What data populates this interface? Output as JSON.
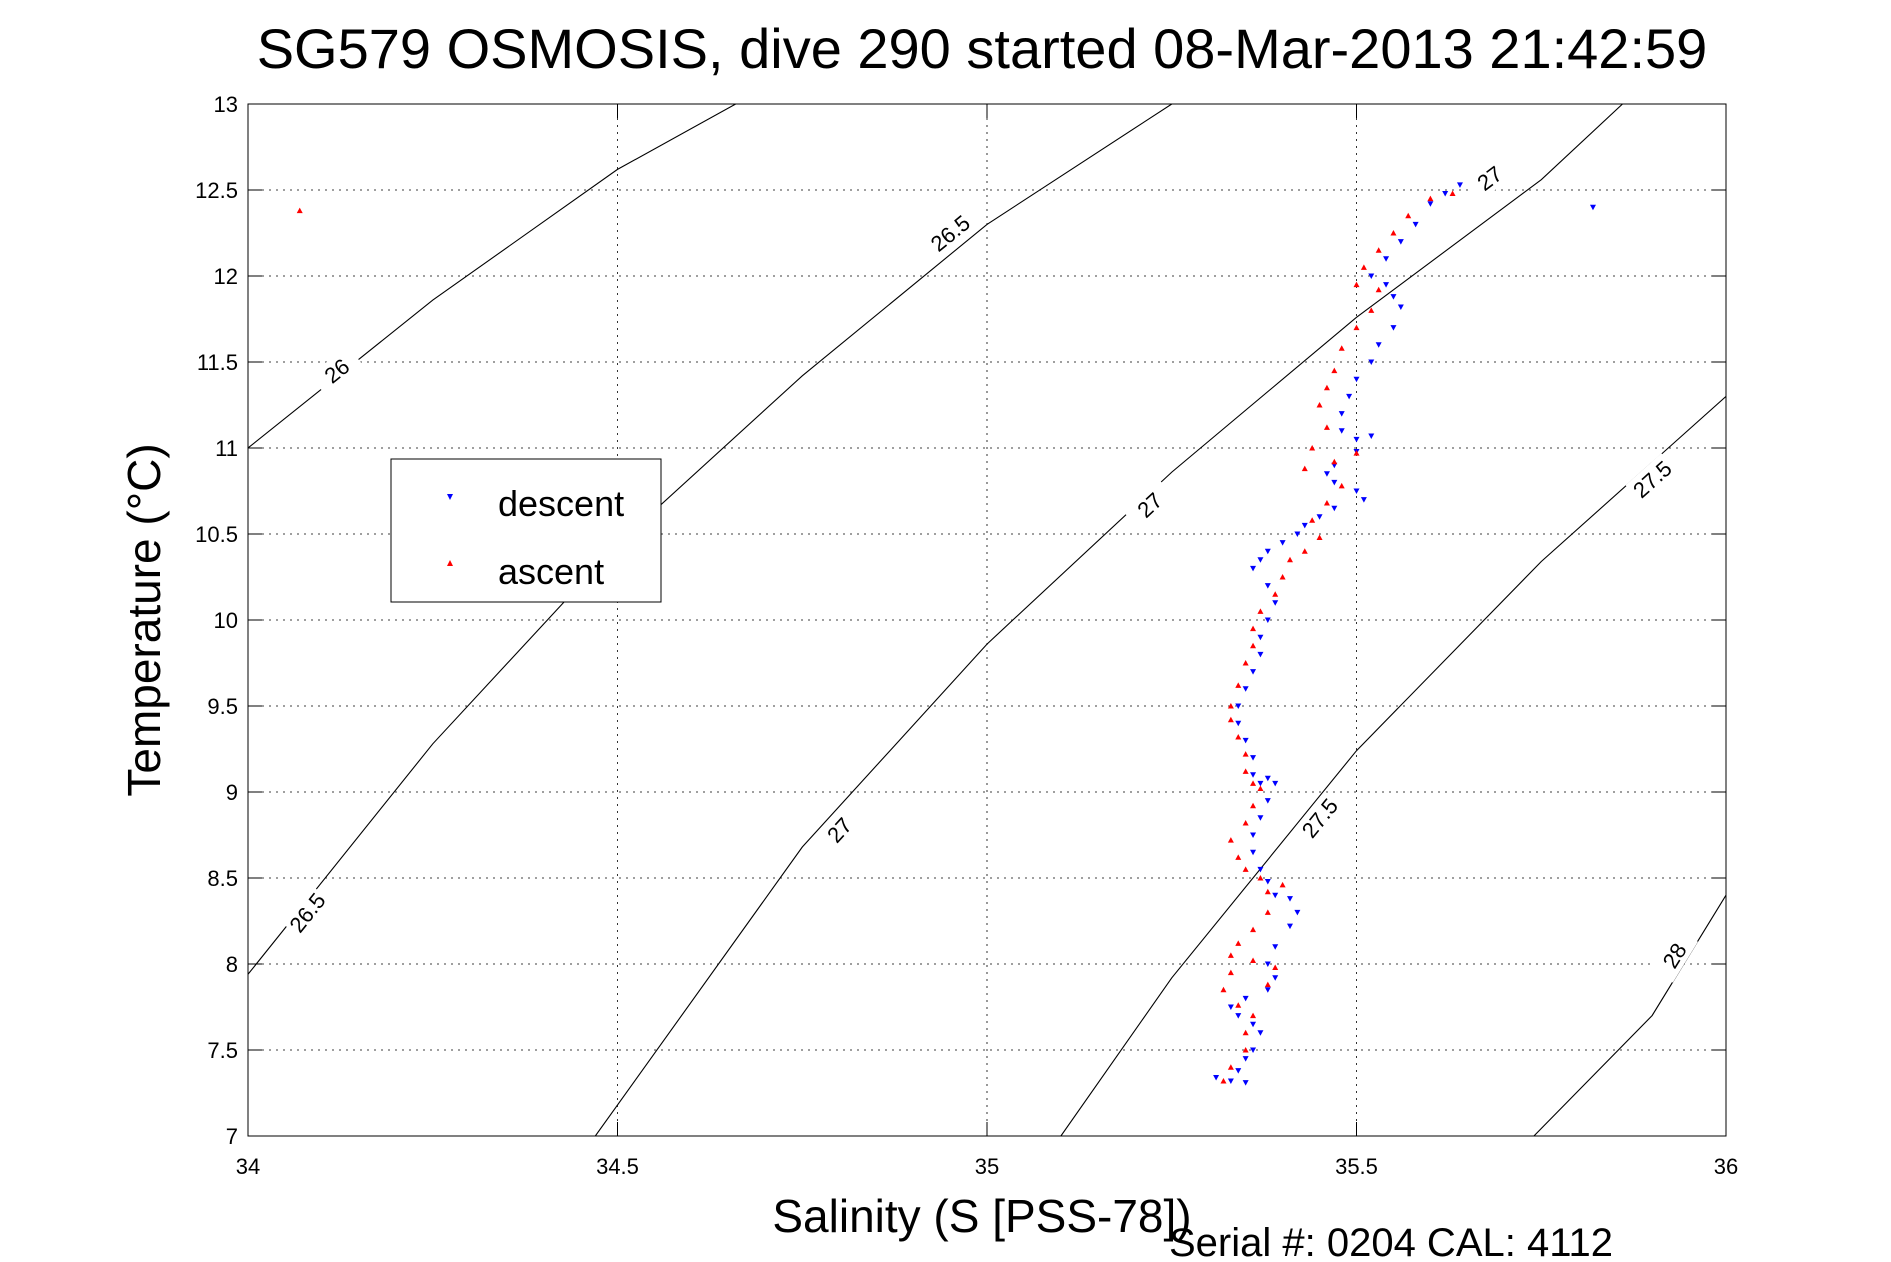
{
  "chart_data": {
    "type": "scatter",
    "title": "SG579 OSMOSIS, dive 290 started 08-Mar-2013 21:42:59",
    "xlabel": "Salinity (S [PSS-78])",
    "ylabel": "Temperature (°C)",
    "xlim": [
      34,
      36
    ],
    "ylim": [
      7,
      13
    ],
    "xticks": [
      "34",
      "34.5",
      "35",
      "35.5",
      "36"
    ],
    "yticks": [
      "7",
      "7.5",
      "8",
      "8.5",
      "9",
      "9.5",
      "10",
      "10.5",
      "11",
      "11.5",
      "12",
      "12.5",
      "13"
    ],
    "grid": true,
    "legend": {
      "placement": "left",
      "entries": [
        "descent",
        "ascent"
      ]
    },
    "footer": "Serial #: 0204  CAL: 4112",
    "colors": {
      "descent": "#0000ff",
      "ascent": "#ff0000",
      "contour": "#000000"
    },
    "density_contours": [
      {
        "label": "26",
        "points": [
          [
            34.0,
            11.0
          ],
          [
            34.25,
            11.86
          ],
          [
            34.5,
            12.62
          ],
          [
            34.66,
            13.0
          ]
        ],
        "label_at": [
          34.12,
          11.45
        ]
      },
      {
        "label": "26.5",
        "points": [
          [
            34.0,
            7.94
          ],
          [
            34.25,
            9.28
          ],
          [
            34.5,
            10.44
          ],
          [
            34.75,
            11.42
          ],
          [
            35.0,
            12.3
          ],
          [
            35.25,
            13.0
          ]
        ],
        "label_at": [
          34.08,
          8.3
        ]
      },
      {
        "label": "26.5",
        "points": [
          [
            34.0,
            7.94
          ],
          [
            34.25,
            9.28
          ],
          [
            34.5,
            10.44
          ],
          [
            34.75,
            11.42
          ],
          [
            35.0,
            12.3
          ],
          [
            35.25,
            13.0
          ]
        ],
        "label_at": [
          34.95,
          12.25
        ]
      },
      {
        "label": "27",
        "points": [
          [
            34.47,
            7.0
          ],
          [
            34.75,
            8.68
          ],
          [
            35.0,
            9.86
          ],
          [
            35.25,
            10.86
          ],
          [
            35.5,
            11.76
          ],
          [
            35.75,
            12.56
          ],
          [
            35.86,
            13.0
          ]
        ],
        "label_at": [
          34.8,
          8.78
        ]
      },
      {
        "label": "27",
        "points": [
          [
            34.47,
            7.0
          ],
          [
            34.75,
            8.68
          ],
          [
            35.0,
            9.86
          ],
          [
            35.25,
            10.86
          ],
          [
            35.5,
            11.76
          ],
          [
            35.75,
            12.56
          ],
          [
            35.86,
            13.0
          ]
        ],
        "label_at": [
          35.22,
          10.67
        ]
      },
      {
        "label": "27",
        "points": [
          [
            34.47,
            7.0
          ],
          [
            34.75,
            8.68
          ],
          [
            35.0,
            9.86
          ],
          [
            35.25,
            10.86
          ],
          [
            35.5,
            11.76
          ],
          [
            35.75,
            12.56
          ],
          [
            35.86,
            13.0
          ]
        ],
        "label_at": [
          35.68,
          12.57
        ]
      },
      {
        "label": "27.5",
        "points": [
          [
            35.1,
            7.0
          ],
          [
            35.25,
            7.92
          ],
          [
            35.5,
            9.24
          ],
          [
            35.75,
            10.34
          ],
          [
            36.0,
            11.3
          ]
        ],
        "label_at": [
          35.45,
          8.85
        ]
      },
      {
        "label": "27.5",
        "points": [
          [
            35.1,
            7.0
          ],
          [
            35.25,
            7.92
          ],
          [
            35.5,
            9.24
          ],
          [
            35.75,
            10.34
          ],
          [
            36.0,
            11.3
          ]
        ],
        "label_at": [
          35.9,
          10.82
        ]
      },
      {
        "label": "28",
        "points": [
          [
            35.74,
            7.0
          ],
          [
            35.9,
            7.7
          ],
          [
            36.0,
            8.4
          ]
        ],
        "label_at": [
          35.93,
          8.05
        ]
      }
    ],
    "series": [
      {
        "name": "descent",
        "marker": "triangle-down",
        "points": [
          [
            35.82,
            12.4
          ],
          [
            35.64,
            12.53
          ],
          [
            35.62,
            12.48
          ],
          [
            35.6,
            12.42
          ],
          [
            35.58,
            12.3
          ],
          [
            35.56,
            12.2
          ],
          [
            35.54,
            12.1
          ],
          [
            35.52,
            12.0
          ],
          [
            35.54,
            11.95
          ],
          [
            35.55,
            11.88
          ],
          [
            35.56,
            11.82
          ],
          [
            35.55,
            11.7
          ],
          [
            35.53,
            11.6
          ],
          [
            35.52,
            11.5
          ],
          [
            35.5,
            11.4
          ],
          [
            35.49,
            11.3
          ],
          [
            35.48,
            11.2
          ],
          [
            35.48,
            11.1
          ],
          [
            35.5,
            11.05
          ],
          [
            35.52,
            11.07
          ],
          [
            35.5,
            10.98
          ],
          [
            35.47,
            10.9
          ],
          [
            35.46,
            10.85
          ],
          [
            35.47,
            10.8
          ],
          [
            35.5,
            10.75
          ],
          [
            35.51,
            10.7
          ],
          [
            35.47,
            10.65
          ],
          [
            35.45,
            10.6
          ],
          [
            35.43,
            10.55
          ],
          [
            35.42,
            10.5
          ],
          [
            35.4,
            10.45
          ],
          [
            35.38,
            10.4
          ],
          [
            35.37,
            10.35
          ],
          [
            35.36,
            10.3
          ],
          [
            35.38,
            10.2
          ],
          [
            35.39,
            10.1
          ],
          [
            35.38,
            10.0
          ],
          [
            35.37,
            9.9
          ],
          [
            35.37,
            9.8
          ],
          [
            35.36,
            9.7
          ],
          [
            35.35,
            9.6
          ],
          [
            35.34,
            9.5
          ],
          [
            35.34,
            9.4
          ],
          [
            35.35,
            9.3
          ],
          [
            35.36,
            9.2
          ],
          [
            35.36,
            9.1
          ],
          [
            35.37,
            9.05
          ],
          [
            35.38,
            9.08
          ],
          [
            35.39,
            9.05
          ],
          [
            35.38,
            8.95
          ],
          [
            35.37,
            8.85
          ],
          [
            35.36,
            8.75
          ],
          [
            35.36,
            8.65
          ],
          [
            35.37,
            8.55
          ],
          [
            35.38,
            8.48
          ],
          [
            35.39,
            8.4
          ],
          [
            35.41,
            8.38
          ],
          [
            35.42,
            8.3
          ],
          [
            35.41,
            8.22
          ],
          [
            35.39,
            8.1
          ],
          [
            35.38,
            8.0
          ],
          [
            35.39,
            7.92
          ],
          [
            35.38,
            7.85
          ],
          [
            35.35,
            7.8
          ],
          [
            35.33,
            7.75
          ],
          [
            35.34,
            7.7
          ],
          [
            35.36,
            7.65
          ],
          [
            35.37,
            7.6
          ],
          [
            35.36,
            7.5
          ],
          [
            35.35,
            7.45
          ],
          [
            35.34,
            7.38
          ],
          [
            35.33,
            7.32
          ],
          [
            35.31,
            7.34
          ],
          [
            35.35,
            7.31
          ]
        ]
      },
      {
        "name": "ascent",
        "marker": "triangle-up",
        "points": [
          [
            34.07,
            12.38
          ],
          [
            35.63,
            12.48
          ],
          [
            35.6,
            12.45
          ],
          [
            35.57,
            12.35
          ],
          [
            35.55,
            12.25
          ],
          [
            35.53,
            12.15
          ],
          [
            35.51,
            12.05
          ],
          [
            35.5,
            11.95
          ],
          [
            35.53,
            11.92
          ],
          [
            35.52,
            11.8
          ],
          [
            35.5,
            11.7
          ],
          [
            35.48,
            11.58
          ],
          [
            35.47,
            11.45
          ],
          [
            35.46,
            11.35
          ],
          [
            35.45,
            11.25
          ],
          [
            35.46,
            11.12
          ],
          [
            35.44,
            11.0
          ],
          [
            35.43,
            10.88
          ],
          [
            35.47,
            10.92
          ],
          [
            35.5,
            10.97
          ],
          [
            35.48,
            10.78
          ],
          [
            35.46,
            10.68
          ],
          [
            35.44,
            10.58
          ],
          [
            35.45,
            10.48
          ],
          [
            35.43,
            10.4
          ],
          [
            35.41,
            10.35
          ],
          [
            35.4,
            10.25
          ],
          [
            35.39,
            10.15
          ],
          [
            35.37,
            10.05
          ],
          [
            35.36,
            9.95
          ],
          [
            35.36,
            9.85
          ],
          [
            35.35,
            9.75
          ],
          [
            35.34,
            9.62
          ],
          [
            35.33,
            9.5
          ],
          [
            35.33,
            9.42
          ],
          [
            35.34,
            9.32
          ],
          [
            35.35,
            9.22
          ],
          [
            35.35,
            9.12
          ],
          [
            35.36,
            9.05
          ],
          [
            35.37,
            9.02
          ],
          [
            35.36,
            8.92
          ],
          [
            35.35,
            8.82
          ],
          [
            35.33,
            8.72
          ],
          [
            35.34,
            8.62
          ],
          [
            35.35,
            8.55
          ],
          [
            35.37,
            8.5
          ],
          [
            35.38,
            8.42
          ],
          [
            35.4,
            8.46
          ],
          [
            35.38,
            8.3
          ],
          [
            35.36,
            8.2
          ],
          [
            35.34,
            8.12
          ],
          [
            35.33,
            8.05
          ],
          [
            35.36,
            8.02
          ],
          [
            35.39,
            7.98
          ],
          [
            35.38,
            7.88
          ],
          [
            35.33,
            7.95
          ],
          [
            35.32,
            7.85
          ],
          [
            35.34,
            7.76
          ],
          [
            35.36,
            7.7
          ],
          [
            35.35,
            7.6
          ],
          [
            35.35,
            7.5
          ],
          [
            35.33,
            7.4
          ],
          [
            35.32,
            7.32
          ]
        ]
      }
    ]
  }
}
